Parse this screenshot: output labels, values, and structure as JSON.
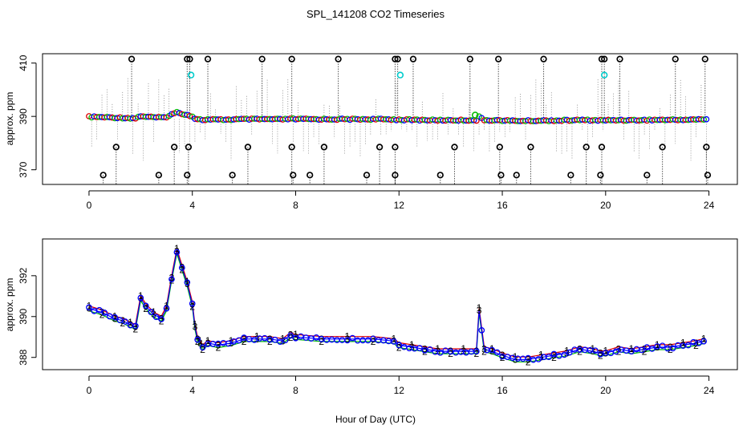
{
  "chart_data": {
    "title": "SPL_141208  CO2 Timeseries",
    "xlabel": "Hour of Day (UTC)",
    "panels": [
      {
        "name": "overview",
        "type": "scatter",
        "ylabel": "approx. ppm",
        "xlim": [
          -1.8,
          25.1
        ],
        "ylim": [
          364.5,
          413.5
        ],
        "xticks": [
          0,
          4,
          8,
          12,
          16,
          20,
          24
        ],
        "yticks": [
          370,
          390,
          410
        ],
        "colors": {
          "raw": "#000000",
          "flagged": "#00cccc",
          "s1": "#dd0000",
          "s2": "#00bb00",
          "s3": "#0000ff",
          "droplines": "#000000"
        },
        "high_outliers_x": [
          1.65,
          3.8,
          3.9,
          4.6,
          6.7,
          7.85,
          9.65,
          11.85,
          11.95,
          12.55,
          14.75,
          15.85,
          17.6,
          19.85,
          19.95,
          20.55,
          22.7,
          23.85
        ],
        "mid_outliers_x": [
          1.05,
          3.3,
          3.85,
          6.15,
          7.85,
          9.1,
          11.25,
          11.85,
          14.15,
          15.9,
          17.1,
          19.25,
          19.85,
          22.2,
          23.9
        ],
        "low_outliers_x": [
          0.55,
          2.7,
          3.8,
          5.55,
          7.9,
          8.55,
          10.75,
          11.85,
          13.6,
          15.95,
          16.55,
          18.65,
          19.8,
          21.6,
          23.95
        ],
        "flagged_points": [
          {
            "x": 3.95,
            "y": 405.5
          },
          {
            "x": 12.05,
            "y": 405.5
          },
          {
            "x": 19.95,
            "y": 405.5
          }
        ]
      },
      {
        "name": "detail",
        "type": "line",
        "ylabel": "approx. ppm",
        "xlim": [
          -1.8,
          25.1
        ],
        "ylim": [
          387.4,
          393.8
        ],
        "xticks": [
          0,
          4,
          8,
          12,
          16,
          20,
          24
        ],
        "yticks": [
          388,
          390,
          392
        ],
        "series": [
          {
            "name": "1",
            "color": "#dd0000",
            "offset": 0.12
          },
          {
            "name": "2",
            "color": "#00bb00",
            "offset": -0.12
          },
          {
            "name": "3",
            "color": "#0000ff",
            "offset": 0.0
          }
        ],
        "x": [
          0,
          0.5,
          1,
          1.3,
          1.6,
          1.8,
          2,
          2.2,
          2.5,
          2.8,
          3,
          3.2,
          3.4,
          3.6,
          3.8,
          4,
          4.1,
          4.2,
          4.3,
          4.4,
          4.6,
          5,
          5.5,
          6,
          6.5,
          7,
          7.5,
          7.8,
          8,
          9,
          10,
          11,
          11.8,
          12,
          12.5,
          13,
          13.5,
          14,
          14.5,
          15,
          15.1,
          15.3,
          15.6,
          16,
          16.5,
          17,
          17.5,
          18,
          18.5,
          19,
          19.5,
          19.8,
          20,
          20.5,
          21,
          21.5,
          22,
          22.5,
          23,
          23.5,
          23.8
        ],
        "values": [
          390.4,
          390.2,
          389.9,
          389.8,
          389.6,
          389.5,
          390.9,
          390.5,
          390.1,
          389.9,
          390.4,
          391.9,
          393.2,
          392.4,
          391.6,
          390.6,
          389.5,
          388.9,
          388.7,
          388.5,
          388.7,
          388.6,
          388.7,
          388.9,
          388.9,
          388.9,
          388.8,
          389.1,
          389.0,
          388.9,
          388.9,
          388.9,
          388.8,
          388.6,
          388.5,
          388.4,
          388.3,
          388.3,
          388.3,
          388.3,
          390.3,
          388.4,
          388.3,
          388.1,
          387.9,
          387.9,
          388.0,
          388.1,
          388.2,
          388.4,
          388.3,
          388.2,
          388.2,
          388.4,
          388.3,
          388.4,
          388.5,
          388.5,
          388.6,
          388.7,
          388.8
        ]
      }
    ]
  }
}
